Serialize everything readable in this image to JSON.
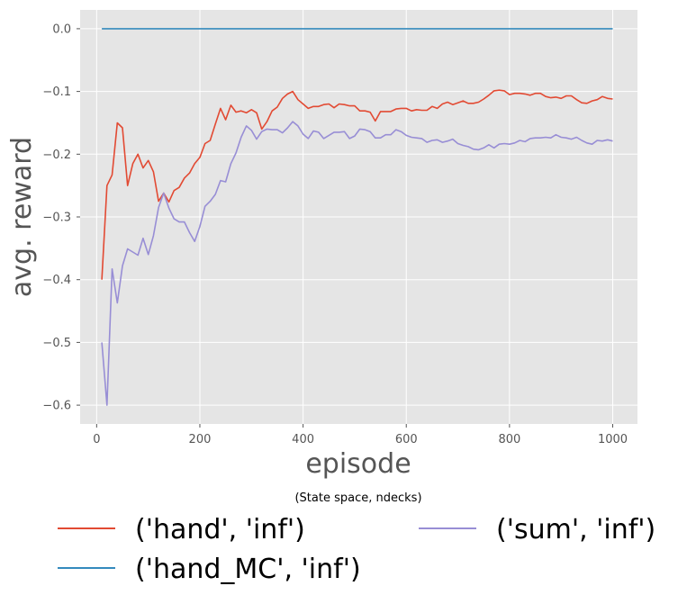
{
  "chart_data": {
    "type": "line",
    "title": "",
    "xlabel": "episode",
    "ylabel": "avg. reward",
    "xlim": [
      -32,
      1048
    ],
    "ylim": [
      -0.63,
      0.03
    ],
    "xticks": [
      0,
      200,
      400,
      600,
      800,
      1000
    ],
    "xtick_labels": [
      "0",
      "200",
      "400",
      "600",
      "800",
      "1000"
    ],
    "yticks": [
      0.0,
      -0.1,
      -0.2,
      -0.3,
      -0.4,
      -0.5,
      -0.6
    ],
    "ytick_labels": [
      "0.0",
      "−0.1",
      "−0.2",
      "−0.3",
      "−0.4",
      "−0.5",
      "−0.6"
    ],
    "grid": true,
    "style": "ggplot",
    "legend": {
      "title": "(State space, ndecks)",
      "placement": "below",
      "entries": [
        "('hand', 'inf')",
        "('hand_MC', 'inf')",
        "('sum', 'inf')"
      ]
    },
    "x": [
      10,
      20,
      30,
      40,
      50,
      60,
      70,
      80,
      90,
      100,
      110,
      120,
      130,
      140,
      150,
      160,
      170,
      180,
      190,
      200,
      210,
      220,
      230,
      240,
      250,
      260,
      270,
      280,
      290,
      300,
      310,
      320,
      330,
      340,
      350,
      360,
      370,
      380,
      390,
      400,
      410,
      420,
      430,
      440,
      450,
      460,
      470,
      480,
      490,
      500,
      510,
      520,
      530,
      540,
      550,
      560,
      570,
      580,
      590,
      600,
      610,
      620,
      630,
      640,
      650,
      660,
      670,
      680,
      690,
      700,
      710,
      720,
      730,
      740,
      750,
      760,
      770,
      780,
      790,
      800,
      810,
      820,
      830,
      840,
      850,
      860,
      870,
      880,
      890,
      900,
      910,
      920,
      930,
      940,
      950,
      960,
      970,
      980,
      990,
      1000
    ],
    "series": [
      {
        "name": "('hand', 'inf')",
        "color": "#E24A33",
        "values": [
          -0.4,
          -0.25,
          -0.233,
          -0.15,
          -0.158,
          -0.25,
          -0.215,
          -0.2,
          -0.222,
          -0.21,
          -0.228,
          -0.275,
          -0.262,
          -0.276,
          -0.258,
          -0.253,
          -0.238,
          -0.23,
          -0.215,
          -0.205,
          -0.183,
          -0.178,
          -0.152,
          -0.127,
          -0.145,
          -0.122,
          -0.133,
          -0.131,
          -0.134,
          -0.129,
          -0.134,
          -0.16,
          -0.148,
          -0.131,
          -0.125,
          -0.111,
          -0.104,
          -0.1,
          -0.113,
          -0.12,
          -0.127,
          -0.124,
          -0.124,
          -0.121,
          -0.12,
          -0.126,
          -0.12,
          -0.121,
          -0.123,
          -0.123,
          -0.131,
          -0.131,
          -0.133,
          -0.147,
          -0.132,
          -0.132,
          -0.132,
          -0.128,
          -0.127,
          -0.127,
          -0.131,
          -0.129,
          -0.13,
          -0.13,
          -0.124,
          -0.127,
          -0.12,
          -0.117,
          -0.121,
          -0.118,
          -0.115,
          -0.119,
          -0.119,
          -0.117,
          -0.112,
          -0.106,
          -0.099,
          -0.098,
          -0.099,
          -0.105,
          -0.103,
          -0.103,
          -0.104,
          -0.106,
          -0.103,
          -0.103,
          -0.108,
          -0.11,
          -0.109,
          -0.111,
          -0.107,
          -0.107,
          -0.113,
          -0.118,
          -0.119,
          -0.115,
          -0.113,
          -0.108,
          -0.111,
          -0.112
        ]
      },
      {
        "name": "('hand_MC', 'inf')",
        "color": "#348ABD",
        "values": [
          0,
          0,
          0,
          0,
          0,
          0,
          0,
          0,
          0,
          0,
          0,
          0,
          0,
          0,
          0,
          0,
          0,
          0,
          0,
          0,
          0,
          0,
          0,
          0,
          0,
          0,
          0,
          0,
          0,
          0,
          0,
          0,
          0,
          0,
          0,
          0,
          0,
          0,
          0,
          0,
          0,
          0,
          0,
          0,
          0,
          0,
          0,
          0,
          0,
          0,
          0,
          0,
          0,
          0,
          0,
          0,
          0,
          0,
          0,
          0,
          0,
          0,
          0,
          0,
          0,
          0,
          0,
          0,
          0,
          0,
          0,
          0,
          0,
          0,
          0,
          0,
          0,
          0,
          0,
          0,
          0,
          0,
          0,
          0,
          0,
          0,
          0,
          0,
          0,
          0,
          0,
          0,
          0,
          0,
          0,
          0,
          0,
          0,
          0,
          0
        ]
      },
      {
        "name": "('sum', 'inf')",
        "color": "#988ED5",
        "values": [
          -0.5,
          -0.6,
          -0.383,
          -0.437,
          -0.378,
          -0.351,
          -0.356,
          -0.361,
          -0.334,
          -0.36,
          -0.33,
          -0.285,
          -0.262,
          -0.286,
          -0.303,
          -0.308,
          -0.308,
          -0.325,
          -0.339,
          -0.315,
          -0.283,
          -0.275,
          -0.264,
          -0.242,
          -0.244,
          -0.215,
          -0.198,
          -0.173,
          -0.155,
          -0.162,
          -0.176,
          -0.164,
          -0.16,
          -0.161,
          -0.161,
          -0.166,
          -0.158,
          -0.148,
          -0.155,
          -0.168,
          -0.175,
          -0.163,
          -0.165,
          -0.175,
          -0.17,
          -0.165,
          -0.165,
          -0.164,
          -0.175,
          -0.171,
          -0.16,
          -0.161,
          -0.164,
          -0.174,
          -0.174,
          -0.169,
          -0.169,
          -0.161,
          -0.164,
          -0.17,
          -0.173,
          -0.174,
          -0.175,
          -0.181,
          -0.178,
          -0.177,
          -0.181,
          -0.179,
          -0.176,
          -0.183,
          -0.186,
          -0.188,
          -0.192,
          -0.193,
          -0.19,
          -0.185,
          -0.19,
          -0.184,
          -0.183,
          -0.184,
          -0.182,
          -0.178,
          -0.18,
          -0.175,
          -0.174,
          -0.174,
          -0.173,
          -0.174,
          -0.169,
          -0.173,
          -0.174,
          -0.176,
          -0.173,
          -0.178,
          -0.182,
          -0.184,
          -0.178,
          -0.179,
          -0.177,
          -0.179
        ]
      }
    ]
  }
}
